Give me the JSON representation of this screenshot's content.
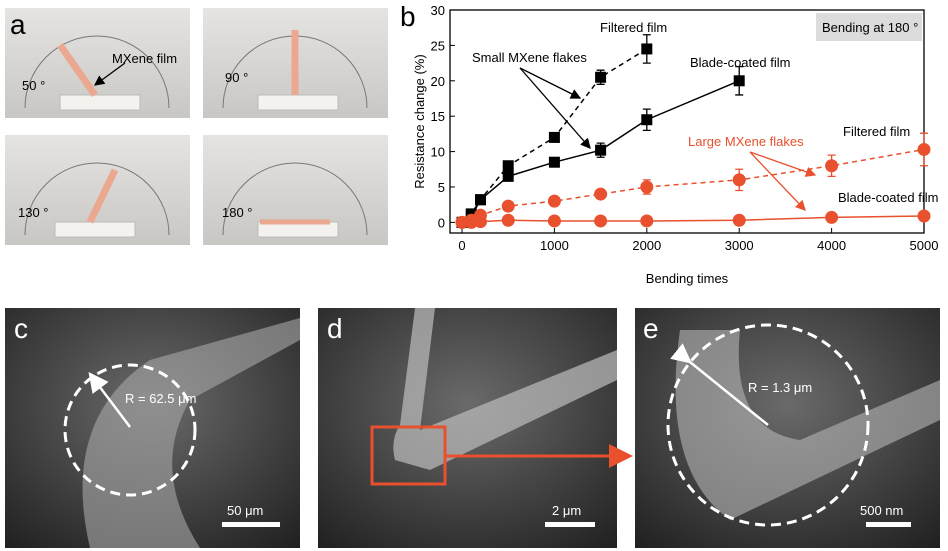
{
  "panels": {
    "a": {
      "label": "a",
      "photos": [
        "50 °",
        "90 °",
        "130 °",
        "180 °"
      ],
      "pointer": "MXene film"
    },
    "b": {
      "label": "b"
    },
    "c": {
      "label": "c",
      "radius": "R = 62.5 μm",
      "scale": "50 μm"
    },
    "d": {
      "label": "d",
      "scale": "2 μm"
    },
    "e": {
      "label": "e",
      "radius": "R = 1.3 μm",
      "scale": "500 nm"
    }
  },
  "chart_data": {
    "type": "scatter",
    "x_label": "Bending times",
    "y_label": "Resistance change (%)",
    "xlim": [
      -130,
      5000
    ],
    "xticks": [
      0,
      1000,
      2000,
      3000,
      4000,
      5000
    ],
    "ylim": [
      -1.5,
      30
    ],
    "yticks": [
      0,
      5,
      10,
      15,
      20,
      25,
      30
    ],
    "annotations": [
      "Bending at 180 °",
      "Filtered film",
      "Small MXene flakes",
      "Blade-coated film",
      "Large MXene flakes",
      "Filtered film",
      "Blade-coated film"
    ],
    "series": [
      {
        "color": "#000000",
        "marker": "square",
        "dashed": true,
        "x": [
          0,
          100,
          200,
          500,
          1000,
          1500,
          2000
        ],
        "values": [
          0,
          1.2,
          3.2,
          8,
          12,
          20.5,
          24.5
        ],
        "errors": [
          0,
          0,
          0,
          0.5,
          0.5,
          1,
          2
        ]
      },
      {
        "color": "#000000",
        "marker": "square",
        "dashed": false,
        "x": [
          0,
          100,
          200,
          500,
          1000,
          1500,
          2000,
          3000
        ],
        "values": [
          0,
          0.8,
          3.2,
          6.5,
          8.5,
          10.2,
          14.5,
          20
        ],
        "errors": [
          0,
          0,
          0,
          0.5,
          0.5,
          1,
          1.5,
          2
        ]
      },
      {
        "color": "#e8502e",
        "marker": "circle",
        "dashed": true,
        "x": [
          0,
          100,
          200,
          500,
          1000,
          1500,
          2000,
          3000,
          4000,
          5000
        ],
        "values": [
          0,
          0.3,
          1,
          2.3,
          3,
          4,
          5,
          6,
          8,
          10.3
        ],
        "errors": [
          0,
          0,
          0,
          0.3,
          0.3,
          0.5,
          1,
          1.5,
          1.5,
          2.3
        ]
      },
      {
        "color": "#e8502e",
        "marker": "circle",
        "dashed": false,
        "x": [
          0,
          100,
          200,
          500,
          1000,
          1500,
          2000,
          3000,
          4000,
          5000
        ],
        "values": [
          0,
          0,
          0.1,
          0.3,
          0.2,
          0.2,
          0.2,
          0.3,
          0.7,
          0.9
        ],
        "errors": [
          0,
          0,
          0,
          0.2,
          0.2,
          0.2,
          0.2,
          0.3,
          0.3,
          0.3
        ]
      }
    ]
  }
}
